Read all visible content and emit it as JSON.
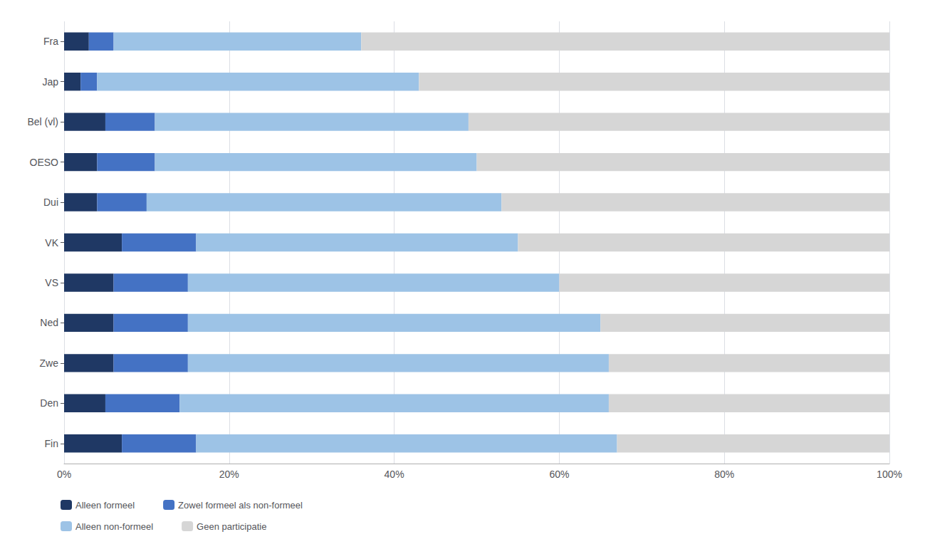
{
  "chart_data": {
    "type": "bar",
    "orientation": "horizontal",
    "stacked": true,
    "categories": [
      "Fra",
      "Jap",
      "Bel (vl)",
      "OESO",
      "Dui",
      "VK",
      "VS",
      "Ned",
      "Zwe",
      "Den",
      "Fin"
    ],
    "series": [
      {
        "name": "Alleen formeel",
        "color": "#1f3864",
        "values": [
          3,
          2,
          5,
          4,
          4,
          7,
          6,
          6,
          6,
          5,
          7
        ]
      },
      {
        "name": "Zowel formeel als non-formeel",
        "color": "#4472c4",
        "values": [
          3,
          2,
          6,
          7,
          6,
          9,
          9,
          9,
          9,
          9,
          9
        ]
      },
      {
        "name": "Alleen non-formeel",
        "color": "#9dc3e6",
        "values": [
          30,
          39,
          38,
          39,
          43,
          39,
          45,
          50,
          51,
          52,
          51
        ]
      },
      {
        "name": "Geen participatie",
        "color": "#d6d6d6",
        "values": [
          64,
          57,
          51,
          50,
          47,
          45,
          40,
          35,
          34,
          34,
          33
        ]
      }
    ],
    "xlim": [
      0,
      100
    ],
    "xticks": [
      {
        "value": 0,
        "label": "0%"
      },
      {
        "value": 20,
        "label": "20%"
      },
      {
        "value": 40,
        "label": "40%"
      },
      {
        "value": 60,
        "label": "60%"
      },
      {
        "value": 80,
        "label": "80%"
      },
      {
        "value": 100,
        "label": "100%"
      }
    ],
    "grid": true,
    "legend": "bottom"
  }
}
